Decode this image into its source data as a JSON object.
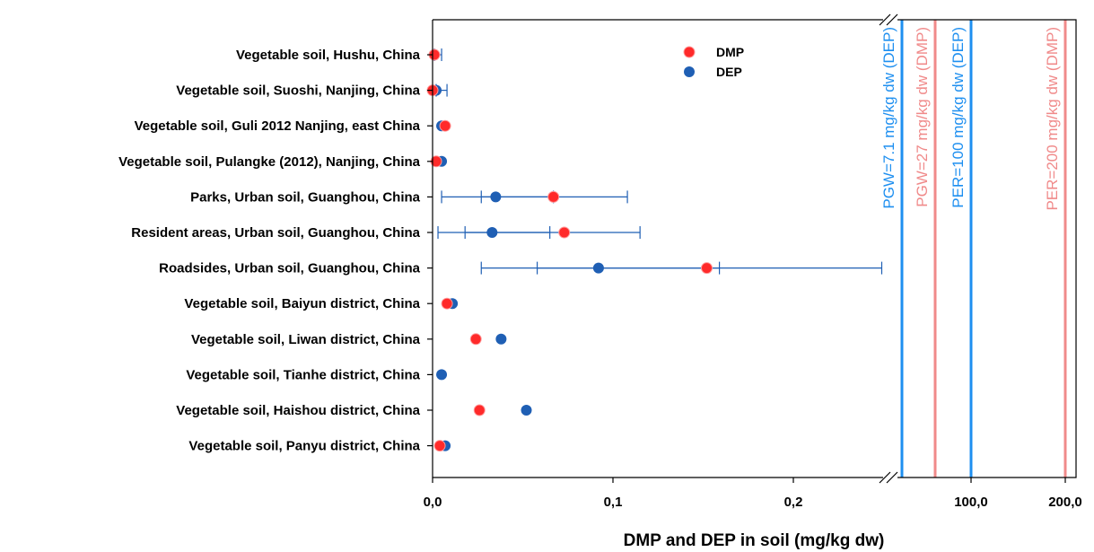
{
  "chart_data": {
    "type": "scatter",
    "title": "",
    "xlabel": "DMP and DEP in soil (mg/kg dw)",
    "ylabel": "",
    "x_axis": {
      "segment1": {
        "range": [
          0,
          0.25
        ],
        "ticks": [
          {
            "value": 0,
            "label": "0,0"
          },
          {
            "value": 0.1,
            "label": "0,1"
          },
          {
            "value": 0.2,
            "label": "0,2"
          }
        ]
      },
      "break": true,
      "segment2": {
        "ticks": [
          {
            "value": 100,
            "label": "100,0"
          },
          {
            "value": 200,
            "label": "200,0"
          }
        ]
      }
    },
    "categories": [
      "Vegetable soil, Hushu, China",
      "Vegetable soil, Suoshi, Nanjing, China",
      "Vegetable soil, Guli 2012 Nanjing, east China",
      "Vegetable soil, Pulangke (2012), Nanjing, China",
      "Parks, Urban soil, Guanghou, China",
      "Resident areas,  Urban soil, Guanghou, China",
      "Roadsides, Urban soil, Guanghou, China",
      "Vegetable soil, Baiyun district, China",
      "Vegetable soil, Liwan district, China",
      "Vegetable soil, Tianhe district, China",
      "Vegetable soil, Haishou district, China",
      "Vegetable soil, Panyu district, China"
    ],
    "series": [
      {
        "name": "DEP",
        "color": "#1f5fb4",
        "values": [
          0.001,
          0.002,
          0.005,
          0.005,
          0.035,
          0.033,
          0.092,
          0.011,
          0.038,
          0.005,
          0.052,
          0.007
        ],
        "error": [
          [
            0.001,
            0.005
          ],
          [
            0.002,
            0.008
          ],
          null,
          null,
          [
            0.005,
            0.108
          ],
          [
            0.003,
            0.115
          ],
          [
            0.027,
            0.249
          ],
          null,
          null,
          null,
          null,
          null
        ]
      },
      {
        "name": "DMP",
        "color": "#ff2a2a",
        "values": [
          0.001,
          0.0,
          0.007,
          0.002,
          0.067,
          0.073,
          0.152,
          0.008,
          0.024,
          null,
          0.026,
          0.004
        ],
        "error": [
          null,
          null,
          null,
          null,
          [
            0.027,
            0.067
          ],
          [
            0.018,
            0.065
          ],
          [
            0.058,
            0.159
          ],
          null,
          null,
          null,
          null,
          null
        ]
      }
    ],
    "reference_lines": [
      {
        "label": "PGW=7.1 mg/kg dw (DEP)",
        "value": 7.1,
        "color": "#1e8ff0"
      },
      {
        "label": "PGW=27 mg/kg dw (DMP)",
        "value": 27,
        "color": "#f08a8a"
      },
      {
        "label": "PER=100 mg/kg dw (DEP)",
        "value": 100,
        "color": "#1e8ff0"
      },
      {
        "label": "PER=200 mg/kg dw (DMP)",
        "value": 200,
        "color": "#f08a8a"
      }
    ],
    "legend": {
      "position": "top-center",
      "entries": [
        "DMP",
        "DEP"
      ]
    }
  }
}
